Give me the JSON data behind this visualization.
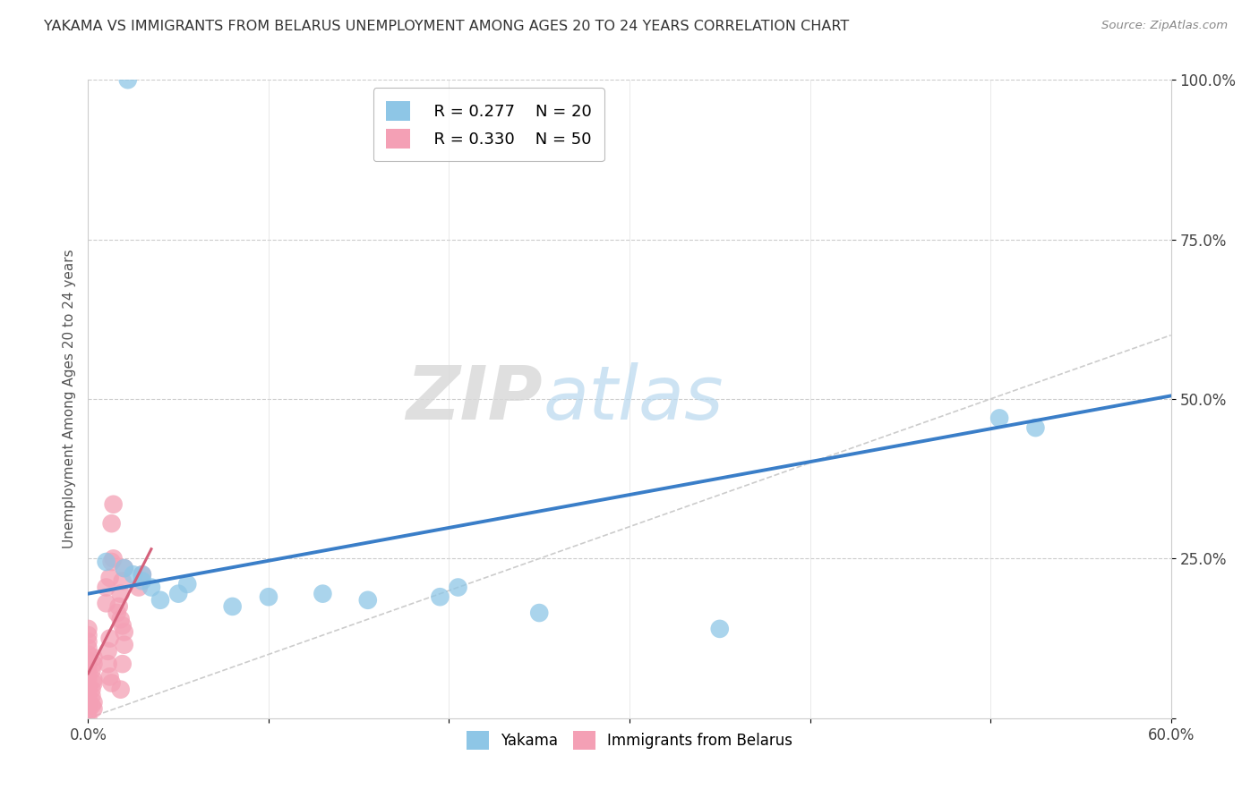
{
  "title": "YAKAMA VS IMMIGRANTS FROM BELARUS UNEMPLOYMENT AMONG AGES 20 TO 24 YEARS CORRELATION CHART",
  "source": "Source: ZipAtlas.com",
  "ylabel": "Unemployment Among Ages 20 to 24 years",
  "xlim": [
    0,
    0.6
  ],
  "ylim": [
    0,
    1.0
  ],
  "xtick_vals": [
    0.0,
    0.1,
    0.2,
    0.3,
    0.4,
    0.5,
    0.6
  ],
  "ytick_vals": [
    0.0,
    0.25,
    0.5,
    0.75,
    1.0
  ],
  "watermark": "ZIPatlas",
  "legend_blue_r": "R = 0.277",
  "legend_blue_n": "N = 20",
  "legend_pink_r": "R = 0.330",
  "legend_pink_n": "N = 50",
  "blue_color": "#8ec6e6",
  "pink_color": "#f4a0b5",
  "blue_line_color": "#3a7ec8",
  "pink_line_color": "#d4607a",
  "blue_scatter": [
    [
      0.022,
      1.0
    ],
    [
      0.01,
      0.245
    ],
    [
      0.02,
      0.235
    ],
    [
      0.025,
      0.225
    ],
    [
      0.03,
      0.215
    ],
    [
      0.035,
      0.205
    ],
    [
      0.05,
      0.195
    ],
    [
      0.055,
      0.21
    ],
    [
      0.08,
      0.175
    ],
    [
      0.1,
      0.19
    ],
    [
      0.13,
      0.195
    ],
    [
      0.155,
      0.185
    ],
    [
      0.195,
      0.19
    ],
    [
      0.205,
      0.205
    ],
    [
      0.25,
      0.165
    ],
    [
      0.35,
      0.14
    ],
    [
      0.505,
      0.47
    ],
    [
      0.525,
      0.455
    ],
    [
      0.03,
      0.225
    ],
    [
      0.04,
      0.185
    ]
  ],
  "pink_scatter": [
    [
      0.0,
      0.0
    ],
    [
      0.0,
      0.01
    ],
    [
      0.0,
      0.02
    ],
    [
      0.0,
      0.03
    ],
    [
      0.0,
      0.04
    ],
    [
      0.0,
      0.05
    ],
    [
      0.0,
      0.06
    ],
    [
      0.0,
      0.07
    ],
    [
      0.0,
      0.08
    ],
    [
      0.0,
      0.09
    ],
    [
      0.0,
      0.1
    ],
    [
      0.0,
      0.11
    ],
    [
      0.0,
      0.12
    ],
    [
      0.0,
      0.13
    ],
    [
      0.0,
      0.14
    ],
    [
      0.002,
      0.02
    ],
    [
      0.002,
      0.035
    ],
    [
      0.002,
      0.045
    ],
    [
      0.003,
      0.055
    ],
    [
      0.003,
      0.06
    ],
    [
      0.003,
      0.015
    ],
    [
      0.003,
      0.025
    ],
    [
      0.002,
      0.075
    ],
    [
      0.003,
      0.085
    ],
    [
      0.003,
      0.095
    ],
    [
      0.01,
      0.205
    ],
    [
      0.012,
      0.22
    ],
    [
      0.013,
      0.245
    ],
    [
      0.014,
      0.25
    ],
    [
      0.01,
      0.18
    ],
    [
      0.02,
      0.235
    ],
    [
      0.019,
      0.215
    ],
    [
      0.018,
      0.195
    ],
    [
      0.017,
      0.175
    ],
    [
      0.016,
      0.165
    ],
    [
      0.018,
      0.155
    ],
    [
      0.019,
      0.145
    ],
    [
      0.02,
      0.135
    ],
    [
      0.011,
      0.105
    ],
    [
      0.012,
      0.125
    ],
    [
      0.013,
      0.305
    ],
    [
      0.014,
      0.335
    ],
    [
      0.02,
      0.115
    ],
    [
      0.03,
      0.225
    ],
    [
      0.028,
      0.205
    ],
    [
      0.011,
      0.085
    ],
    [
      0.019,
      0.085
    ],
    [
      0.012,
      0.065
    ],
    [
      0.013,
      0.055
    ],
    [
      0.018,
      0.045
    ]
  ],
  "blue_trendline": [
    [
      0.0,
      0.195
    ],
    [
      0.6,
      0.505
    ]
  ],
  "pink_trendline": [
    [
      0.0,
      0.07
    ],
    [
      0.035,
      0.265
    ]
  ],
  "diag_line": [
    [
      0.0,
      0.0
    ],
    [
      1.0,
      1.0
    ]
  ]
}
